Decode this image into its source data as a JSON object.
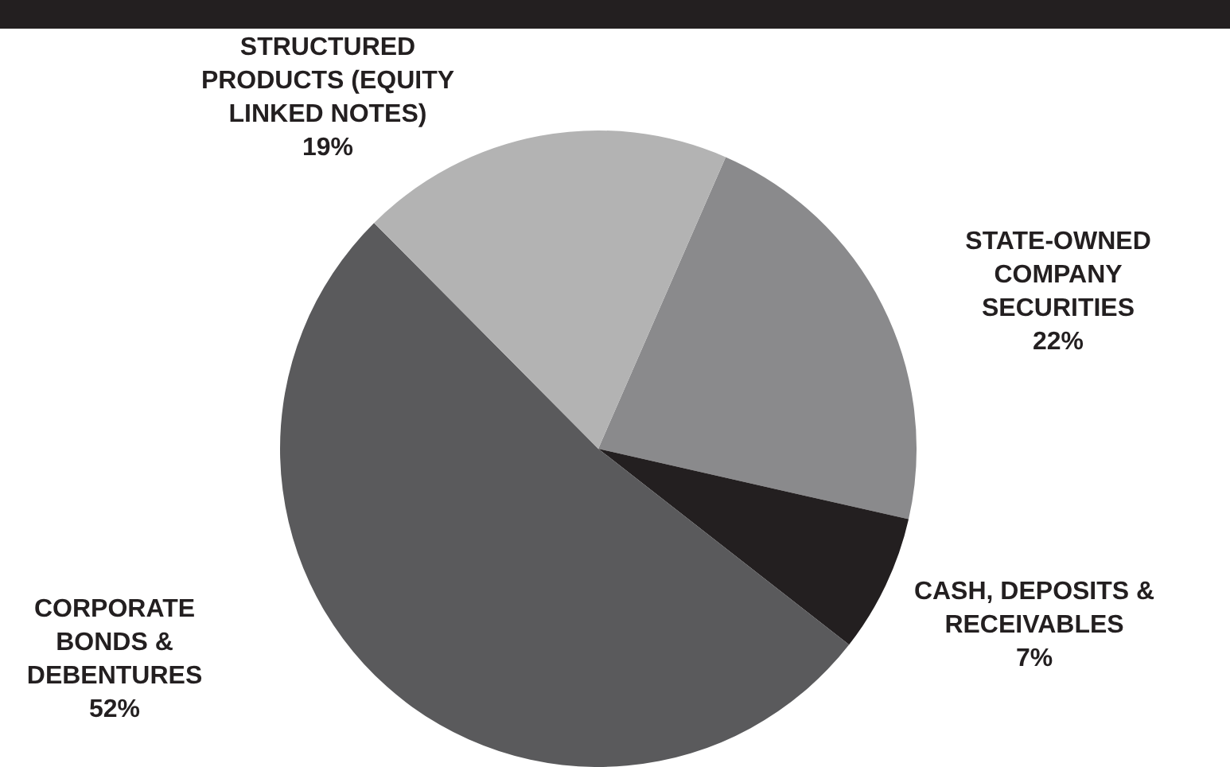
{
  "chart_data": {
    "type": "pie",
    "categories": [
      "STATE-OWNED COMPANY SECURITIES",
      "CASH, DEPOSITS & RECEIVABLES",
      "CORPORATE BONDS & DEBENTURES",
      "STRUCTURED PRODUCTS (EQUITY LINKED NOTES)"
    ],
    "values": [
      22,
      7,
      52,
      19
    ],
    "value_labels": [
      "22%",
      "7%",
      "52%",
      "19%"
    ],
    "colors": [
      "#8a8a8c",
      "#231f20",
      "#5a5a5c",
      "#b3b3b3"
    ],
    "legend": false
  }
}
